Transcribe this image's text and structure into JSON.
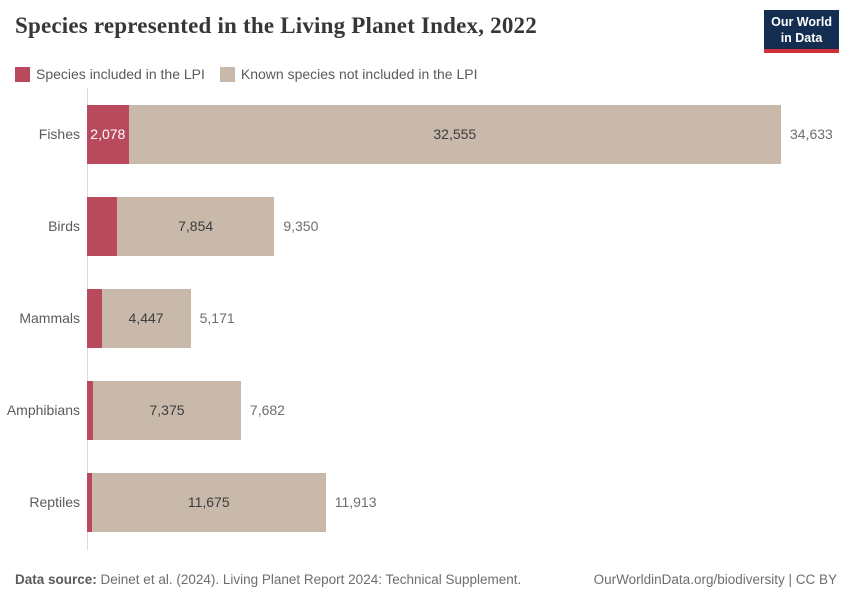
{
  "header": {
    "title": "Species represented in the Living Planet Index, 2022",
    "logo": {
      "line1": "Our World",
      "line2": "in Data"
    }
  },
  "legend": {
    "items": [
      {
        "label": "Species included in the LPI",
        "color": "#b94a5e"
      },
      {
        "label": "Known species not included in the LPI",
        "color": "#c8b9aa"
      }
    ]
  },
  "chart_data": {
    "type": "bar",
    "orientation": "horizontal",
    "stacked": true,
    "categories": [
      "Fishes",
      "Birds",
      "Mammals",
      "Amphibians",
      "Reptiles"
    ],
    "series": [
      {
        "name": "Species included in the LPI",
        "color": "#b94a5e",
        "values": [
          2078,
          1496,
          724,
          307,
          238
        ]
      },
      {
        "name": "Known species not included in the LPI",
        "color": "#c8b9aa",
        "values": [
          32555,
          7854,
          4447,
          7375,
          11675
        ]
      }
    ],
    "totals": [
      34633,
      9350,
      5171,
      7682,
      11913
    ],
    "labels": {
      "included": [
        "2,078",
        "",
        "",
        "",
        ""
      ],
      "excluded": [
        "32,555",
        "7,854",
        "4,447",
        "7,375",
        "11,675"
      ],
      "totals": [
        "34,633",
        "9,350",
        "5,171",
        "7,682",
        "11,913"
      ]
    },
    "xmax": 34633,
    "legend_position": "top",
    "grid": false,
    "axis_color": "#dadada"
  },
  "footer": {
    "source_label": "Data source:",
    "source_text": " Deinet et al. (2024). Living Planet Report 2024: Technical Supplement.",
    "link_text": "OurWorldinData.org/biodiversity | CC BY"
  },
  "colors": {
    "included_red": "#b94a5e",
    "excluded_tan": "#c8b9aa",
    "title_text": "#373737",
    "gray_text": "#5b5b5b",
    "value_dark": "#3d3d3d",
    "total_gray": "#6e6e6e",
    "logo_navy": "#142e52",
    "logo_red": "#cf303a"
  }
}
